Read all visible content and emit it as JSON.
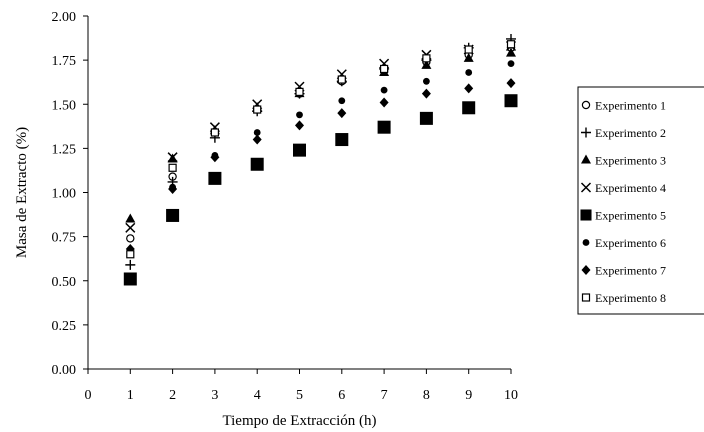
{
  "chart_data": {
    "type": "scatter",
    "xlabel": "Tiempo de Extracción (h)",
    "ylabel": "Masa de Extracto (%)",
    "xlim": [
      0,
      10
    ],
    "ylim": [
      0,
      2
    ],
    "x_ticks": [
      "0",
      "1",
      "2",
      "3",
      "4",
      "5",
      "6",
      "7",
      "8",
      "9",
      "10"
    ],
    "y_ticks": [
      "0.00",
      "0.25",
      "0.50",
      "0.75",
      "1.00",
      "1.25",
      "1.50",
      "1.75",
      "2.00"
    ],
    "grid": false,
    "legend_position": "right",
    "x": [
      1,
      2,
      3,
      4,
      5,
      6,
      7,
      8,
      9,
      10
    ],
    "series": [
      {
        "name": "Experimento 1",
        "marker": "circle-open",
        "values": [
          0.74,
          1.09,
          1.34,
          1.47,
          1.56,
          1.63,
          1.69,
          1.74,
          1.78,
          1.82
        ]
      },
      {
        "name": "Experimento 2",
        "marker": "plus",
        "values": [
          0.59,
          1.06,
          1.31,
          1.46,
          1.56,
          1.63,
          1.7,
          1.75,
          1.82,
          1.87
        ]
      },
      {
        "name": "Experimento 3",
        "marker": "triangle",
        "values": [
          0.85,
          1.19,
          1.35,
          1.48,
          1.56,
          1.64,
          1.68,
          1.72,
          1.76,
          1.79
        ]
      },
      {
        "name": "Experimento 4",
        "marker": "x",
        "values": [
          0.8,
          1.2,
          1.37,
          1.5,
          1.6,
          1.67,
          1.73,
          1.78,
          1.81,
          1.83
        ]
      },
      {
        "name": "Experimento 5",
        "marker": "square",
        "values": [
          0.51,
          0.87,
          1.08,
          1.16,
          1.24,
          1.3,
          1.37,
          1.42,
          1.48,
          1.52
        ]
      },
      {
        "name": "Experimento 6",
        "marker": "dot",
        "values": [
          0.65,
          1.03,
          1.21,
          1.34,
          1.44,
          1.52,
          1.58,
          1.63,
          1.68,
          1.73
        ]
      },
      {
        "name": "Experimento 7",
        "marker": "diamond",
        "values": [
          0.68,
          1.02,
          1.2,
          1.3,
          1.38,
          1.45,
          1.51,
          1.56,
          1.59,
          1.62
        ]
      },
      {
        "name": "Experimento 8",
        "marker": "square-open",
        "values": [
          0.65,
          1.14,
          1.34,
          1.47,
          1.57,
          1.64,
          1.7,
          1.76,
          1.81,
          1.84
        ]
      }
    ]
  }
}
